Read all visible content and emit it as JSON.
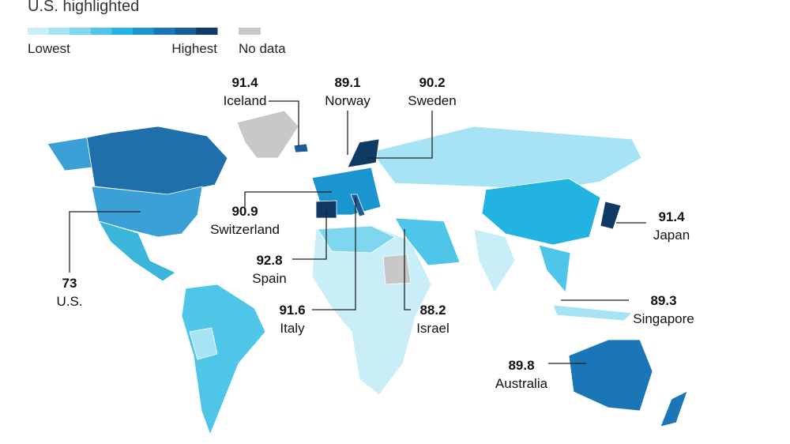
{
  "subtitle": "U.S. highlighted",
  "legend": {
    "low_label": "Lowest",
    "high_label": "Highest",
    "no_data_label": "No data",
    "colors": [
      "#c9eef8",
      "#a6e4f5",
      "#7fd7ef",
      "#4fc6e8",
      "#22b3e0",
      "#1b95cf",
      "#1a76b6",
      "#175c97",
      "#0f3a66"
    ],
    "no_data_color": "#c8c8c8"
  },
  "callouts": [
    {
      "value": 91.4,
      "country": "Iceland"
    },
    {
      "value": 89.1,
      "country": "Norway"
    },
    {
      "value": 90.2,
      "country": "Sweden"
    },
    {
      "value": 90.9,
      "country": "Switzerland"
    },
    {
      "value": 73,
      "country": "U.S."
    },
    {
      "value": 92.8,
      "country": "Spain"
    },
    {
      "value": 91.6,
      "country": "Italy"
    },
    {
      "value": 88.2,
      "country": "Israel"
    },
    {
      "value": 91.4,
      "country": "Japan"
    },
    {
      "value": 89.3,
      "country": "Singapore"
    },
    {
      "value": 89.8,
      "country": "Australia"
    }
  ]
}
